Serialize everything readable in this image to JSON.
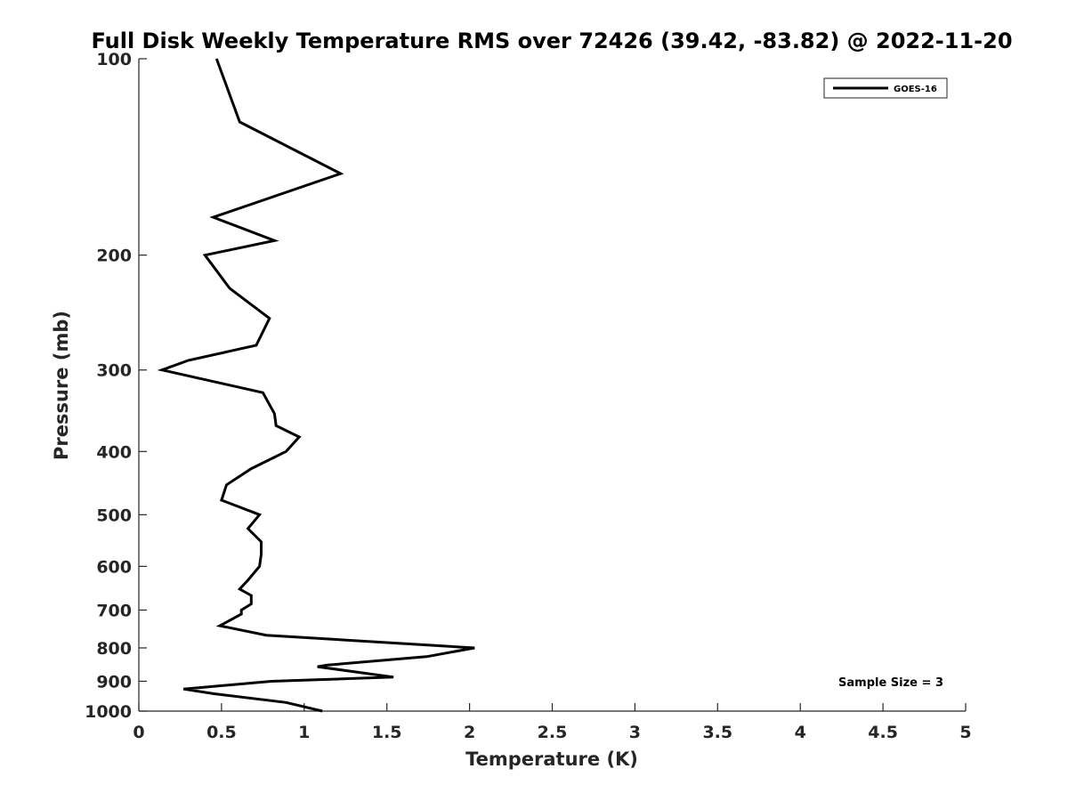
{
  "chart_data": {
    "type": "line",
    "title": "Full Disk Weekly Temperature RMS over 72426 (39.42, -83.82) @ 2022-11-20",
    "xlabel": "Temperature (K)",
    "ylabel": "Pressure (mb)",
    "xlim": [
      0,
      5
    ],
    "ylim": [
      100,
      1000
    ],
    "yscale": "log",
    "y_reversed": true,
    "grid": false,
    "legend_position": "top-right",
    "x_ticks": [
      "0",
      "0.5",
      "1",
      "1.5",
      "2",
      "2.5",
      "3",
      "3.5",
      "4",
      "4.5",
      "5"
    ],
    "x_tick_values": [
      0,
      0.5,
      1,
      1.5,
      2,
      2.5,
      3,
      3.5,
      4,
      4.5,
      5
    ],
    "y_ticks": [
      "100",
      "200",
      "300",
      "400",
      "500",
      "600",
      "700",
      "800",
      "900",
      "1000"
    ],
    "y_tick_values": [
      100,
      200,
      300,
      400,
      500,
      600,
      700,
      800,
      900,
      1000
    ],
    "series": [
      {
        "name": "GOES-16",
        "color": "#000000",
        "points": [
          [
            0.47,
            100
          ],
          [
            0.61,
            125
          ],
          [
            1.22,
            150
          ],
          [
            0.45,
            175
          ],
          [
            0.82,
            190
          ],
          [
            0.4,
            200
          ],
          [
            0.55,
            225
          ],
          [
            0.79,
            250
          ],
          [
            0.71,
            275
          ],
          [
            0.3,
            290
          ],
          [
            0.14,
            300
          ],
          [
            0.75,
            325
          ],
          [
            0.82,
            350
          ],
          [
            0.83,
            365
          ],
          [
            0.97,
            380
          ],
          [
            0.89,
            400
          ],
          [
            0.68,
            425
          ],
          [
            0.53,
            450
          ],
          [
            0.5,
            475
          ],
          [
            0.73,
            500
          ],
          [
            0.66,
            525
          ],
          [
            0.74,
            550
          ],
          [
            0.74,
            575
          ],
          [
            0.73,
            600
          ],
          [
            0.66,
            630
          ],
          [
            0.61,
            650
          ],
          [
            0.68,
            665
          ],
          [
            0.68,
            685
          ],
          [
            0.62,
            700
          ],
          [
            0.62,
            710
          ],
          [
            0.49,
            740
          ],
          [
            0.77,
            765
          ],
          [
            2.03,
            800
          ],
          [
            1.74,
            825
          ],
          [
            1.14,
            850
          ],
          [
            1.08,
            855
          ],
          [
            1.54,
            887
          ],
          [
            0.8,
            900
          ],
          [
            0.27,
            925
          ],
          [
            0.46,
            941
          ],
          [
            0.89,
            970
          ],
          [
            1.11,
            1000
          ]
        ]
      }
    ],
    "annotations": [
      "Sample Size = 3"
    ]
  }
}
